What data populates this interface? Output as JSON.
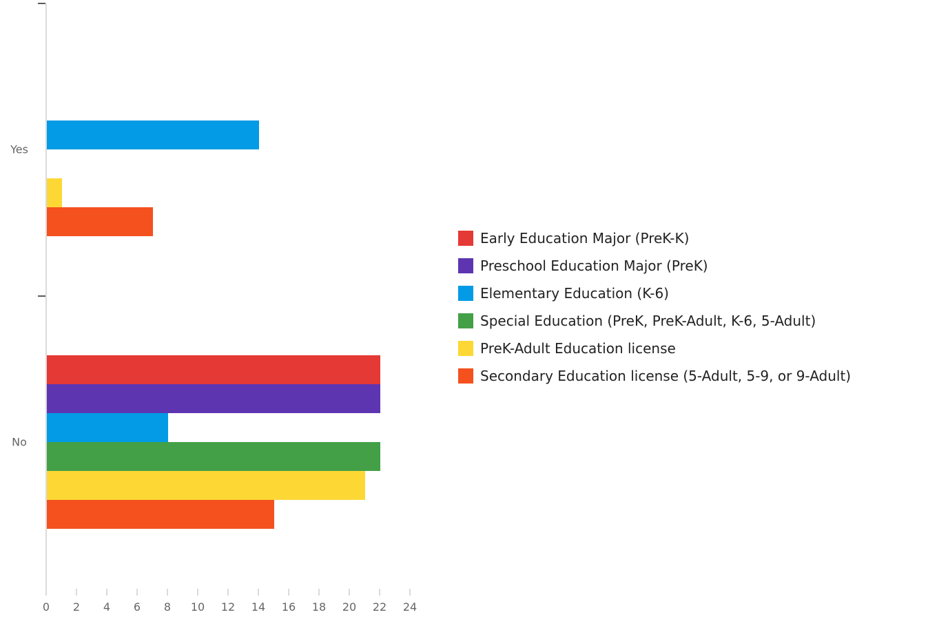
{
  "chart_data": {
    "type": "bar",
    "orientation": "horizontal",
    "categories": [
      "Yes",
      "No"
    ],
    "series": [
      {
        "name": "Early Education Major (PreK-K)",
        "color": "#e53935",
        "values": [
          0,
          22
        ]
      },
      {
        "name": "Preschool Education Major (PreK)",
        "color": "#5e35b1",
        "values": [
          0,
          22
        ]
      },
      {
        "name": "Elementary Education (K-6)",
        "color": "#039be5",
        "values": [
          14,
          8
        ]
      },
      {
        "name": "Special Education (PreK, PreK-Adult, K-6, 5-Adult)",
        "color": "#43a047",
        "values": [
          0,
          22
        ]
      },
      {
        "name": "PreK-Adult Education license",
        "color": "#fdd835",
        "values": [
          1,
          21
        ]
      },
      {
        "name": "Secondary Education license (5-Adult, 5-9, or 9-Adult)",
        "color": "#f4511e",
        "values": [
          7,
          15
        ]
      }
    ],
    "xlim": [
      0,
      24
    ],
    "xticks": [
      "0",
      "2",
      "4",
      "6",
      "8",
      "10",
      "12",
      "14",
      "16",
      "18",
      "20",
      "22",
      "24"
    ],
    "grid": false,
    "legend_position": "right"
  }
}
